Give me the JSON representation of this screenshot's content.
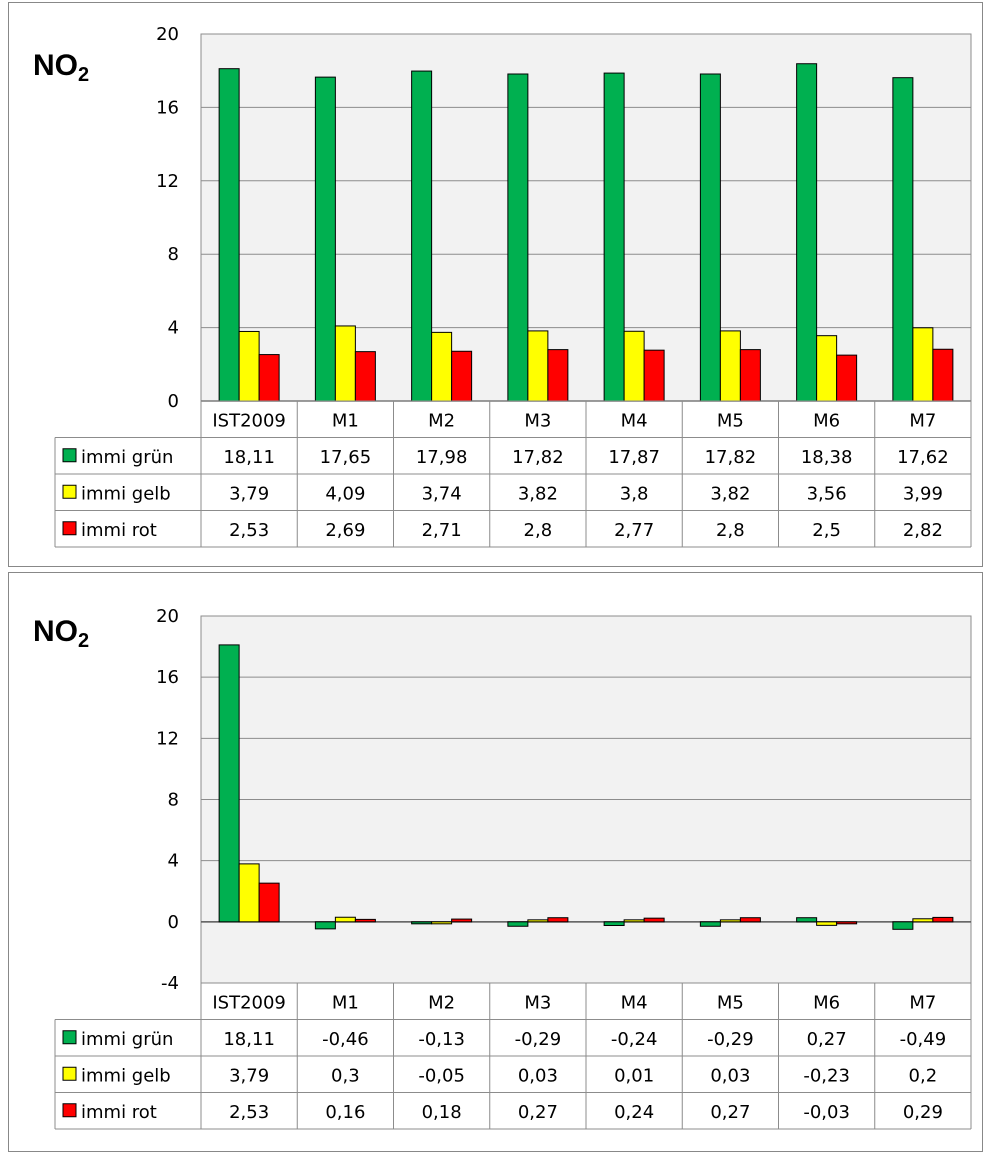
{
  "chart_data": [
    {
      "type": "bar",
      "title_main": "NO",
      "title_sub": "2",
      "categories": [
        "IST2009",
        "M1",
        "M2",
        "M3",
        "M4",
        "M5",
        "M6",
        "M7"
      ],
      "ylim": [
        0,
        20
      ],
      "yticks": [
        0,
        4,
        8,
        12,
        16,
        20
      ],
      "grid": true,
      "legend": "data-table",
      "series": [
        {
          "name": "immi grün",
          "color": "#00b050",
          "values": [
            18.11,
            17.65,
            17.98,
            17.82,
            17.87,
            17.82,
            18.38,
            17.62
          ],
          "labels": [
            "18,11",
            "17,65",
            "17,98",
            "17,82",
            "17,87",
            "17,82",
            "18,38",
            "17,62"
          ]
        },
        {
          "name": "immi gelb",
          "color": "#ffff00",
          "values": [
            3.79,
            4.09,
            3.74,
            3.82,
            3.8,
            3.82,
            3.56,
            3.99
          ],
          "labels": [
            "3,79",
            "4,09",
            "3,74",
            "3,82",
            "3,8",
            "3,82",
            "3,56",
            "3,99"
          ]
        },
        {
          "name": "immi rot",
          "color": "#ff0000",
          "values": [
            2.53,
            2.69,
            2.71,
            2.8,
            2.77,
            2.8,
            2.5,
            2.82
          ],
          "labels": [
            "2,53",
            "2,69",
            "2,71",
            "2,8",
            "2,77",
            "2,8",
            "2,5",
            "2,82"
          ]
        }
      ]
    },
    {
      "type": "bar",
      "title_main": "NO",
      "title_sub": "2",
      "categories": [
        "IST2009",
        "M1",
        "M2",
        "M3",
        "M4",
        "M5",
        "M6",
        "M7"
      ],
      "ylim": [
        -4,
        20
      ],
      "yticks": [
        -4,
        0,
        4,
        8,
        12,
        16,
        20
      ],
      "grid": true,
      "legend": "data-table",
      "series": [
        {
          "name": "immi grün",
          "color": "#00b050",
          "values": [
            18.11,
            -0.46,
            -0.13,
            -0.29,
            -0.24,
            -0.29,
            0.27,
            -0.49
          ],
          "labels": [
            "18,11",
            "-0,46",
            "-0,13",
            "-0,29",
            "-0,24",
            "-0,29",
            "0,27",
            "-0,49"
          ]
        },
        {
          "name": "immi gelb",
          "color": "#ffff00",
          "values": [
            3.79,
            0.3,
            -0.05,
            0.03,
            0.01,
            0.03,
            -0.23,
            0.2
          ],
          "labels": [
            "3,79",
            "0,3",
            "-0,05",
            "0,03",
            "0,01",
            "0,03",
            "-0,23",
            "0,2"
          ]
        },
        {
          "name": "immi rot",
          "color": "#ff0000",
          "values": [
            2.53,
            0.16,
            0.18,
            0.27,
            0.24,
            0.27,
            -0.03,
            0.29
          ],
          "labels": [
            "2,53",
            "0,16",
            "0,18",
            "0,27",
            "0,24",
            "0,27",
            "-0,03",
            "0,29"
          ]
        }
      ]
    }
  ]
}
